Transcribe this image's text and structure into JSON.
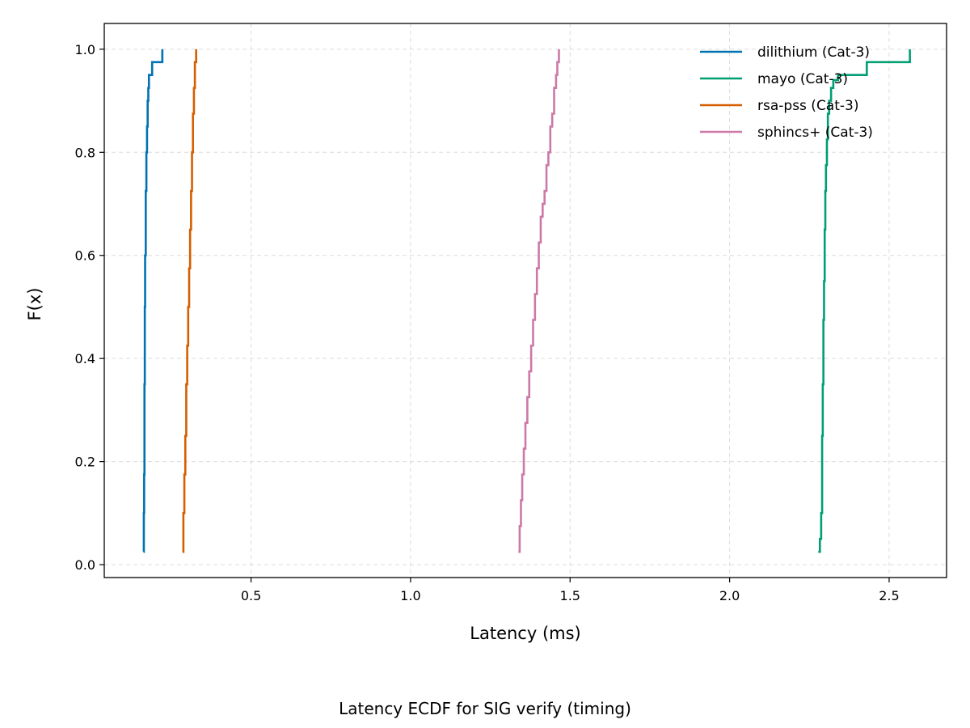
{
  "chart_data": {
    "type": "line",
    "subtype": "ecdf-step",
    "caption": "Latency ECDF for SIG verify (timing)",
    "xlabel": "Latency (ms)",
    "ylabel": "F(x)",
    "xlim": [
      0.04,
      2.68
    ],
    "ylim": [
      -0.025,
      1.05
    ],
    "xticks": [
      0.5,
      1.0,
      1.5,
      2.0,
      2.5
    ],
    "xtick_labels": [
      "0.5",
      "1.0",
      "1.5",
      "2.0",
      "2.5"
    ],
    "yticks": [
      0.0,
      0.2,
      0.4,
      0.6,
      0.8,
      1.0
    ],
    "ytick_labels": [
      "0.0",
      "0.2",
      "0.4",
      "0.6",
      "0.8",
      "1.0"
    ],
    "grid": true,
    "legend_position": "top-right",
    "series": [
      {
        "name": "dilithium (Cat-3)",
        "color": "#0072b2",
        "x": [
          0.163,
          0.164,
          0.165,
          0.166,
          0.167,
          0.168,
          0.17,
          0.172,
          0.174,
          0.176,
          0.178,
          0.18,
          0.19,
          0.222
        ],
        "y": [
          0.025,
          0.1,
          0.175,
          0.35,
          0.5,
          0.6,
          0.725,
          0.8,
          0.85,
          0.9,
          0.925,
          0.95,
          0.975,
          1.0
        ]
      },
      {
        "name": "mayo (Cat-3)",
        "color": "#009e73",
        "x": [
          2.278,
          2.283,
          2.287,
          2.29,
          2.292,
          2.294,
          2.296,
          2.298,
          2.3,
          2.302,
          2.305,
          2.308,
          2.312,
          2.318,
          2.325,
          2.34,
          2.43,
          2.565
        ],
        "y": [
          0.025,
          0.05,
          0.1,
          0.25,
          0.35,
          0.475,
          0.55,
          0.65,
          0.725,
          0.775,
          0.825,
          0.875,
          0.9,
          0.925,
          0.94,
          0.95,
          0.975,
          1.0
        ]
      },
      {
        "name": "rsa-pss (Cat-3)",
        "color": "#d55e00",
        "x": [
          0.285,
          0.288,
          0.291,
          0.294,
          0.297,
          0.3,
          0.303,
          0.306,
          0.309,
          0.312,
          0.315,
          0.318,
          0.321,
          0.324,
          0.328
        ],
        "y": [
          0.025,
          0.1,
          0.175,
          0.25,
          0.35,
          0.425,
          0.5,
          0.575,
          0.65,
          0.725,
          0.8,
          0.875,
          0.925,
          0.975,
          1.0
        ]
      },
      {
        "name": "sphincs+ (Cat-3)",
        "color": "#cc79a7",
        "x": [
          1.338,
          1.342,
          1.346,
          1.35,
          1.355,
          1.36,
          1.366,
          1.372,
          1.378,
          1.384,
          1.39,
          1.396,
          1.402,
          1.408,
          1.414,
          1.42,
          1.426,
          1.432,
          1.438,
          1.444,
          1.45,
          1.456,
          1.46,
          1.465
        ],
        "y": [
          0.025,
          0.075,
          0.125,
          0.175,
          0.225,
          0.275,
          0.325,
          0.375,
          0.425,
          0.475,
          0.525,
          0.575,
          0.625,
          0.675,
          0.7,
          0.725,
          0.775,
          0.8,
          0.85,
          0.875,
          0.925,
          0.95,
          0.975,
          1.0
        ]
      }
    ]
  }
}
